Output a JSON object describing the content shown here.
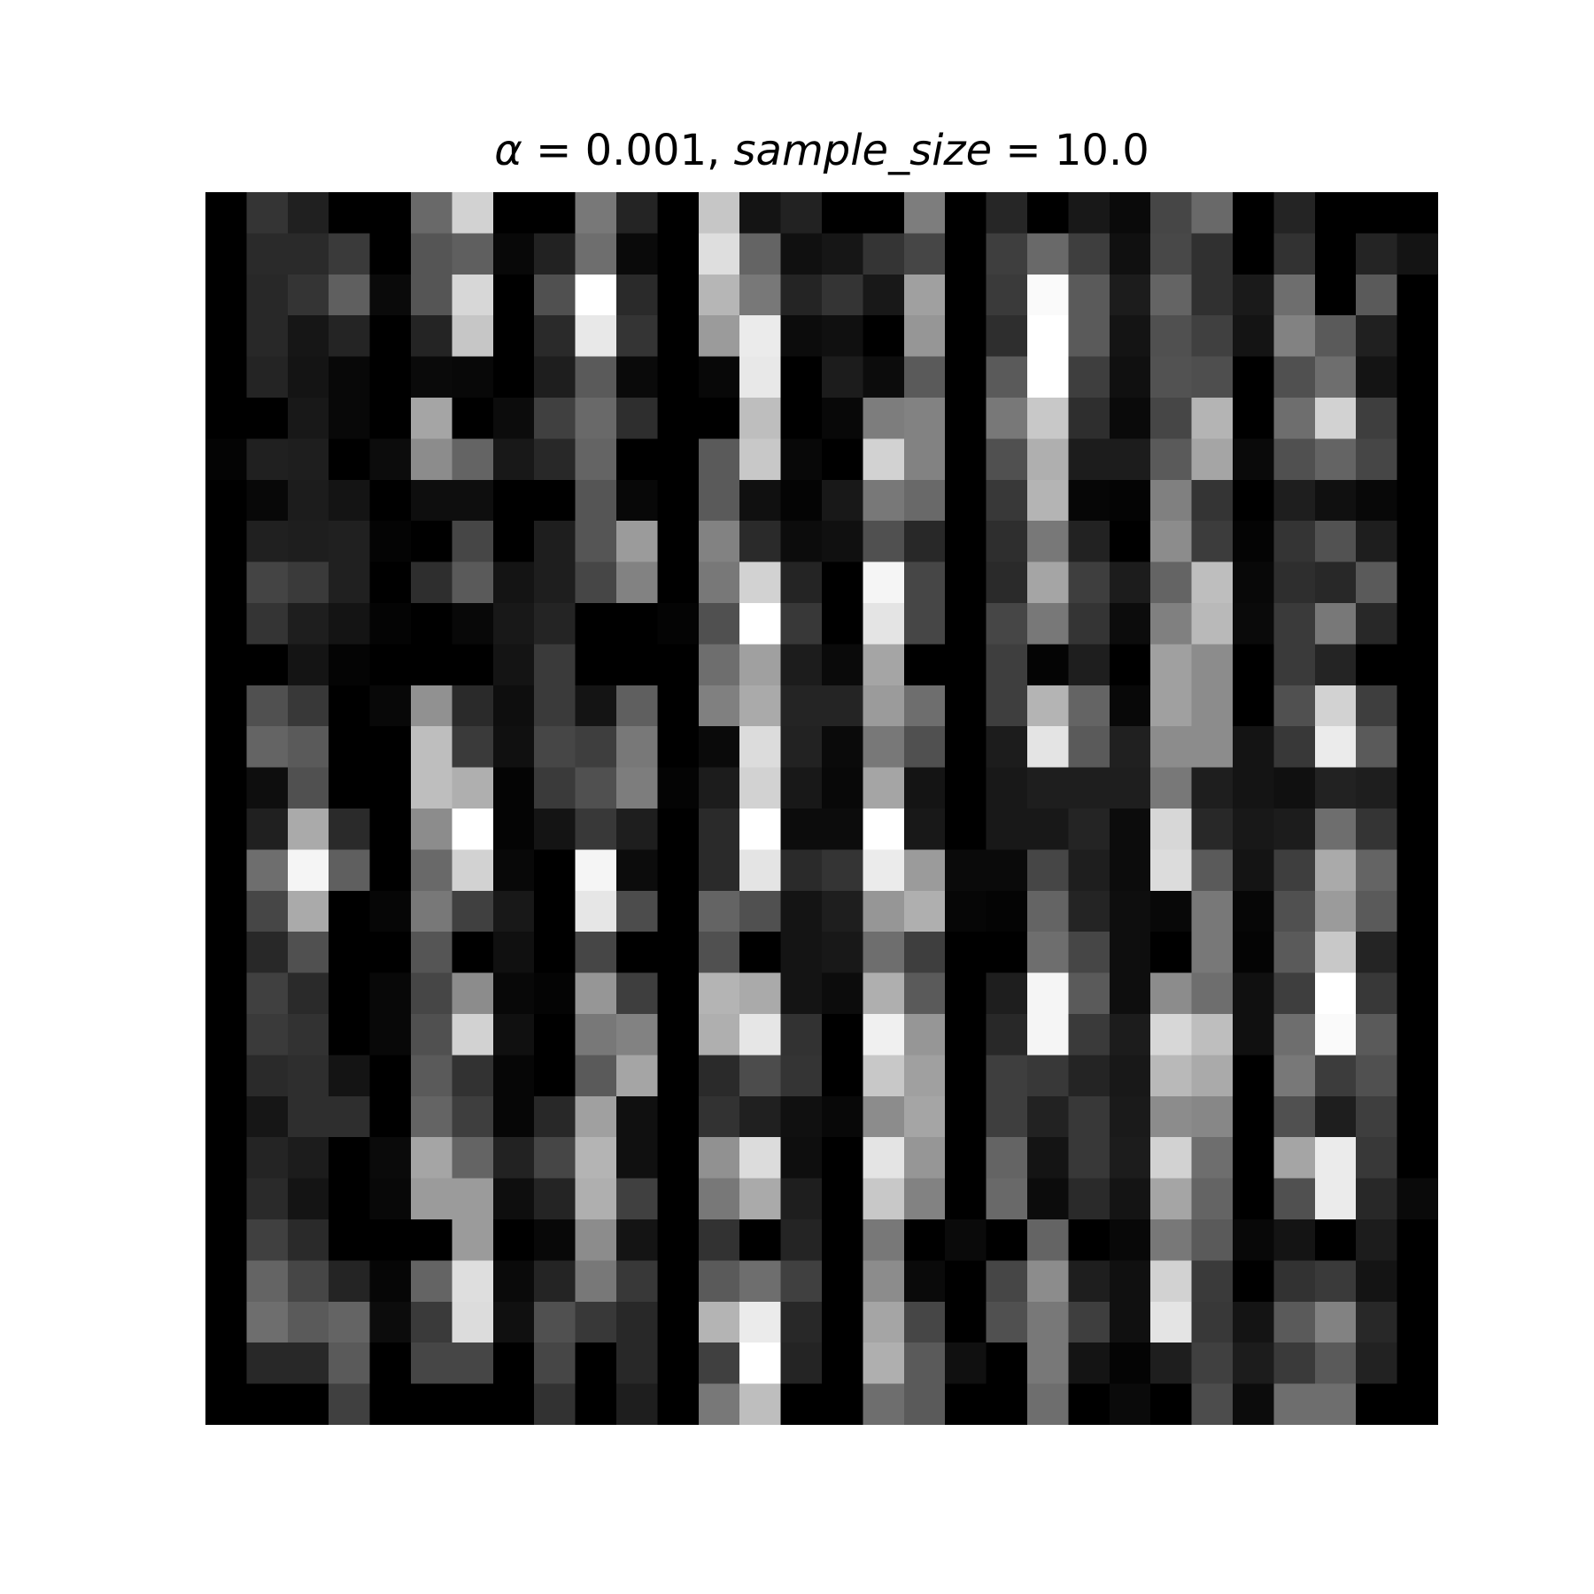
{
  "chart_data": {
    "type": "heatmap",
    "title": "α = 0.001, sample_size = 10.0",
    "title_parts": {
      "alpha_symbol": "α",
      "alpha_eq": " = 0.001, ",
      "sample_size_symbol": "sample_size",
      "sample_size_eq": " = 10.0"
    },
    "colormap": "gray",
    "value_range": [
      0,
      255
    ],
    "axes_visible": false,
    "rows": 30,
    "cols": 30,
    "values": [
      [
        0,
        52,
        32,
        0,
        0,
        105,
        210,
        0,
        0,
        120,
        36,
        0,
        198,
        20,
        34,
        0,
        0,
        125,
        0,
        38,
        0,
        24,
        10,
        70,
        105,
        0,
        36,
        0,
        0,
        0
      ],
      [
        0,
        42,
        42,
        58,
        0,
        85,
        95,
        8,
        34,
        110,
        10,
        0,
        222,
        100,
        16,
        22,
        52,
        70,
        0,
        62,
        105,
        62,
        16,
        72,
        48,
        0,
        50,
        0,
        36,
        20
      ],
      [
        0,
        40,
        52,
        95,
        10,
        85,
        215,
        0,
        80,
        255,
        42,
        0,
        182,
        120,
        36,
        52,
        24,
        160,
        0,
        58,
        250,
        90,
        28,
        100,
        48,
        26,
        110,
        0,
        90,
        0
      ],
      [
        0,
        40,
        22,
        36,
        0,
        36,
        198,
        0,
        42,
        232,
        52,
        0,
        155,
        235,
        12,
        16,
        0,
        150,
        0,
        46,
        255,
        90,
        20,
        80,
        64,
        20,
        130,
        90,
        32,
        0
      ],
      [
        0,
        36,
        20,
        8,
        0,
        10,
        8,
        0,
        30,
        90,
        10,
        0,
        8,
        232,
        0,
        28,
        12,
        90,
        0,
        90,
        255,
        62,
        16,
        82,
        78,
        0,
        80,
        110,
        20,
        0
      ],
      [
        0,
        0,
        24,
        8,
        0,
        165,
        0,
        12,
        64,
        105,
        46,
        0,
        0,
        190,
        0,
        8,
        125,
        130,
        0,
        120,
        200,
        46,
        10,
        70,
        180,
        0,
        110,
        210,
        62,
        0
      ],
      [
        4,
        32,
        30,
        0,
        12,
        140,
        100,
        24,
        40,
        100,
        0,
        0,
        90,
        200,
        8,
        0,
        210,
        130,
        0,
        80,
        175,
        28,
        28,
        90,
        165,
        10,
        80,
        100,
        70,
        0
      ],
      [
        0,
        8,
        28,
        20,
        0,
        14,
        14,
        0,
        0,
        85,
        8,
        0,
        90,
        16,
        4,
        24,
        120,
        105,
        0,
        56,
        180,
        6,
        4,
        128,
        52,
        0,
        30,
        16,
        8,
        0
      ],
      [
        0,
        32,
        30,
        32,
        4,
        0,
        70,
        0,
        30,
        85,
        155,
        0,
        130,
        42,
        12,
        16,
        80,
        40,
        0,
        46,
        120,
        34,
        0,
        140,
        60,
        4,
        52,
        82,
        30,
        0
      ],
      [
        0,
        68,
        58,
        32,
        0,
        46,
        90,
        20,
        30,
        70,
        130,
        0,
        120,
        210,
        36,
        0,
        245,
        70,
        0,
        42,
        165,
        62,
        28,
        100,
        190,
        8,
        46,
        40,
        90,
        0
      ],
      [
        0,
        52,
        30,
        20,
        4,
        0,
        8,
        24,
        36,
        0,
        0,
        4,
        80,
        255,
        56,
        0,
        228,
        70,
        0,
        70,
        120,
        52,
        12,
        128,
        185,
        10,
        58,
        120,
        40,
        0
      ],
      [
        0,
        0,
        20,
        4,
        0,
        0,
        0,
        20,
        58,
        0,
        0,
        0,
        110,
        160,
        28,
        10,
        165,
        0,
        0,
        62,
        4,
        30,
        0,
        160,
        140,
        0,
        58,
        36,
        0,
        0
      ],
      [
        0,
        80,
        56,
        0,
        8,
        145,
        42,
        14,
        58,
        20,
        95,
        0,
        128,
        170,
        36,
        36,
        155,
        110,
        0,
        62,
        180,
        100,
        8,
        160,
        140,
        0,
        80,
        210,
        62,
        0
      ],
      [
        0,
        100,
        90,
        0,
        0,
        190,
        58,
        16,
        70,
        62,
        120,
        0,
        10,
        220,
        34,
        10,
        120,
        80,
        0,
        28,
        228,
        90,
        32,
        140,
        140,
        20,
        56,
        235,
        90,
        0
      ],
      [
        0,
        14,
        80,
        0,
        0,
        190,
        175,
        4,
        58,
        80,
        125,
        4,
        28,
        210,
        24,
        8,
        165,
        20,
        0,
        24,
        30,
        30,
        30,
        120,
        30,
        20,
        16,
        34,
        30,
        0
      ],
      [
        0,
        32,
        170,
        42,
        0,
        140,
        255,
        4,
        20,
        56,
        30,
        0,
        42,
        255,
        12,
        12,
        255,
        24,
        0,
        24,
        24,
        36,
        12,
        215,
        40,
        24,
        28,
        110,
        52,
        0
      ],
      [
        0,
        110,
        245,
        95,
        0,
        105,
        210,
        8,
        0,
        245,
        12,
        0,
        42,
        228,
        42,
        52,
        235,
        155,
        10,
        10,
        70,
        30,
        12,
        220,
        90,
        20,
        62,
        170,
        100,
        0
      ],
      [
        0,
        70,
        170,
        0,
        6,
        120,
        64,
        24,
        0,
        230,
        76,
        0,
        100,
        80,
        20,
        30,
        150,
        175,
        6,
        4,
        100,
        36,
        14,
        8,
        120,
        6,
        80,
        155,
        90,
        0
      ],
      [
        0,
        40,
        80,
        0,
        0,
        85,
        0,
        16,
        0,
        70,
        0,
        0,
        80,
        0,
        20,
        24,
        110,
        62,
        0,
        0,
        110,
        70,
        14,
        0,
        120,
        4,
        90,
        200,
        36,
        0
      ],
      [
        0,
        64,
        42,
        0,
        8,
        70,
        140,
        8,
        4,
        150,
        62,
        0,
        180,
        170,
        20,
        12,
        175,
        90,
        0,
        30,
        245,
        90,
        14,
        140,
        110,
        16,
        62,
        255,
        56,
        0
      ],
      [
        0,
        58,
        50,
        0,
        8,
        80,
        210,
        16,
        0,
        120,
        130,
        0,
        175,
        230,
        50,
        0,
        240,
        150,
        0,
        40,
        245,
        58,
        28,
        215,
        190,
        16,
        110,
        250,
        90,
        0
      ],
      [
        0,
        42,
        46,
        20,
        0,
        90,
        50,
        6,
        0,
        90,
        165,
        0,
        42,
        76,
        52,
        0,
        200,
        160,
        0,
        62,
        56,
        36,
        24,
        185,
        170,
        0,
        120,
        60,
        80,
        0
      ],
      [
        0,
        22,
        46,
        46,
        0,
        100,
        62,
        6,
        40,
        160,
        16,
        0,
        50,
        32,
        16,
        8,
        140,
        165,
        0,
        62,
        34,
        56,
        26,
        140,
        135,
        0,
        80,
        30,
        62,
        0
      ],
      [
        0,
        36,
        28,
        0,
        10,
        165,
        100,
        34,
        70,
        180,
        16,
        0,
        145,
        220,
        14,
        0,
        228,
        150,
        0,
        100,
        20,
        56,
        28,
        210,
        110,
        0,
        165,
        235,
        56,
        0
      ],
      [
        0,
        42,
        20,
        0,
        8,
        155,
        155,
        14,
        36,
        175,
        64,
        0,
        120,
        170,
        30,
        0,
        200,
        130,
        0,
        105,
        12,
        42,
        20,
        165,
        100,
        0,
        80,
        235,
        40,
        10
      ],
      [
        0,
        64,
        42,
        0,
        0,
        0,
        155,
        0,
        8,
        140,
        20,
        0,
        50,
        0,
        36,
        0,
        120,
        0,
        10,
        0,
        100,
        0,
        8,
        120,
        90,
        8,
        20,
        0,
        28,
        0
      ],
      [
        0,
        100,
        70,
        36,
        6,
        100,
        222,
        10,
        36,
        120,
        56,
        0,
        90,
        110,
        64,
        0,
        140,
        10,
        0,
        70,
        140,
        30,
        16,
        210,
        58,
        0,
        50,
        58,
        20,
        0
      ],
      [
        0,
        110,
        90,
        100,
        12,
        58,
        220,
        16,
        80,
        56,
        40,
        0,
        180,
        235,
        40,
        0,
        165,
        70,
        0,
        80,
        120,
        62,
        16,
        228,
        56,
        20,
        90,
        130,
        40,
        0
      ],
      [
        0,
        40,
        40,
        90,
        0,
        70,
        70,
        0,
        70,
        0,
        40,
        0,
        64,
        255,
        36,
        0,
        175,
        90,
        16,
        0,
        120,
        20,
        4,
        30,
        64,
        28,
        58,
        90,
        34,
        0
      ],
      [
        0,
        0,
        0,
        64,
        0,
        0,
        0,
        0,
        50,
        0,
        30,
        0,
        120,
        190,
        0,
        0,
        110,
        90,
        0,
        0,
        110,
        0,
        10,
        0,
        76,
        12,
        110,
        110,
        0,
        0
      ]
    ]
  }
}
